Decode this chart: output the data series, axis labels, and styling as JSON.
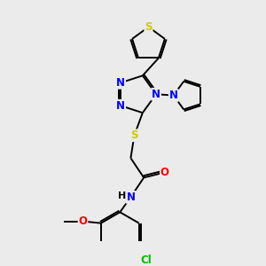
{
  "background_color": "#ebebeb",
  "bond_color": "#000000",
  "atom_colors": {
    "N": "#0000ff",
    "S": "#cccc00",
    "O": "#ff0000",
    "Cl": "#00bb00",
    "C": "#000000",
    "H": "#000000"
  },
  "figsize": [
    3.0,
    3.0
  ],
  "dpi": 100,
  "lw": 1.4,
  "fs": 8.5
}
